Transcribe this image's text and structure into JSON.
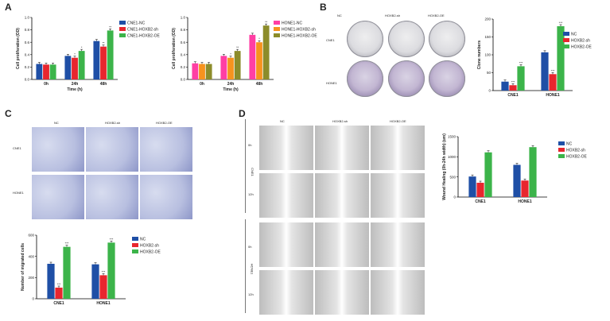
{
  "panels": {
    "A": "A",
    "B": "B",
    "C": "C",
    "D": "D"
  },
  "colors": {
    "red": "#e8262e",
    "blue": "#1f4fa6",
    "green": "#3cb44a",
    "pink": "#ff3fa4",
    "orange": "#f7931e",
    "olive": "#8c8c2a"
  },
  "panelB": {
    "cols": [
      "NC",
      "HOXB2-sh",
      "HOXB2-OE"
    ],
    "rows": [
      "CNE1",
      "HONE1"
    ]
  },
  "panelC": {
    "cols": [
      "NC",
      "HOXB2-sh",
      "HOXB2-OE"
    ],
    "rows": [
      "CNE1",
      "HONE1"
    ]
  },
  "panelD": {
    "cols": [
      "NC",
      "HOXB2-sh",
      "HOXB2-OE"
    ],
    "groups": [
      "CNE1",
      "HONE1"
    ],
    "times": [
      "0h",
      "12h",
      "0h",
      "12h"
    ]
  },
  "chart_data": [
    {
      "id": "A1",
      "type": "bar",
      "categories": [
        "0h",
        "24h",
        "48h"
      ],
      "series": [
        {
          "name": "CNE1-NC",
          "color": "#1f4fa6",
          "values": [
            0.25,
            0.38,
            0.62
          ]
        },
        {
          "name": "CNE1-HOXB2-sh",
          "color": "#e8262e",
          "values": [
            0.24,
            0.35,
            0.53
          ]
        },
        {
          "name": "CNE1-HOXB2-OE",
          "color": "#3cb44a",
          "values": [
            0.24,
            0.46,
            0.79
          ]
        }
      ],
      "ylabel": "Cell proliferation (OD)",
      "xlabel": "Time (h)",
      "ylim": [
        0,
        1.0
      ],
      "yticks": [
        "0.0",
        "0.2",
        "0.4",
        "0.6",
        "0.8",
        "1.0"
      ],
      "stars": [
        [
          "",
          "",
          ""
        ],
        [
          "",
          "*",
          "*"
        ],
        [
          "",
          "**",
          "**"
        ]
      ]
    },
    {
      "id": "A2",
      "type": "bar",
      "categories": [
        "0h",
        "24h",
        "48h"
      ],
      "series": [
        {
          "name": "HONE1-NC",
          "color": "#ff3fa4",
          "values": [
            0.26,
            0.38,
            0.72
          ]
        },
        {
          "name": "HONE1-HOXB2-sh",
          "color": "#f7931e",
          "values": [
            0.25,
            0.35,
            0.6
          ]
        },
        {
          "name": "HONE1-HOXB2-OE",
          "color": "#8c8c2a",
          "values": [
            0.25,
            0.46,
            0.87
          ]
        }
      ],
      "ylabel": "Cell proliferation (OD)",
      "xlabel": "Time (h)",
      "ylim": [
        0,
        1.0
      ],
      "yticks": [
        "0.0",
        "0.2",
        "0.4",
        "0.6",
        "0.8",
        "1.0"
      ],
      "stars": [
        [
          "",
          "",
          ""
        ],
        [
          "",
          "*",
          "**"
        ],
        [
          "",
          "*",
          "**"
        ]
      ]
    },
    {
      "id": "B",
      "type": "bar",
      "categories": [
        "CNE1",
        "HONE1"
      ],
      "series": [
        {
          "name": "NC",
          "color": "#1f4fa6",
          "values": [
            25,
            107
          ]
        },
        {
          "name": "HOXB2-sh",
          "color": "#e8262e",
          "values": [
            15,
            46
          ]
        },
        {
          "name": "HOXB2-OE",
          "color": "#3cb44a",
          "values": [
            68,
            180
          ]
        }
      ],
      "ylabel": "Clone numbers",
      "xlabel": "",
      "ylim": [
        0,
        200
      ],
      "yticks": [
        "0",
        "50",
        "100",
        "150",
        "200"
      ],
      "stars": [
        [
          "",
          "***",
          "***"
        ],
        [
          "",
          "***",
          "***"
        ]
      ]
    },
    {
      "id": "C",
      "type": "bar",
      "categories": [
        "CNE1",
        "HONE1"
      ],
      "series": [
        {
          "name": "NC",
          "color": "#1f4fa6",
          "values": [
            330,
            325
          ]
        },
        {
          "name": "HOXB2-sh",
          "color": "#e8262e",
          "values": [
            105,
            222
          ]
        },
        {
          "name": "HOXB2-OE",
          "color": "#3cb44a",
          "values": [
            490,
            530
          ]
        }
      ],
      "ylabel": "Number of migrated cells",
      "xlabel": "",
      "ylim": [
        0,
        600
      ],
      "yticks": [
        "0",
        "200",
        "400",
        "600"
      ],
      "stars": [
        [
          "",
          "***",
          "***"
        ],
        [
          "",
          "***",
          "***"
        ]
      ]
    },
    {
      "id": "D",
      "type": "bar",
      "categories": [
        "CNE1",
        "HONE1"
      ],
      "series": [
        {
          "name": "NC",
          "color": "#1f4fa6",
          "values": [
            510,
            800
          ]
        },
        {
          "name": "HOXB2-sh",
          "color": "#e8262e",
          "values": [
            355,
            410
          ]
        },
        {
          "name": "HOXB2-OE",
          "color": "#3cb44a",
          "values": [
            1110,
            1240
          ]
        }
      ],
      "ylabel": "Wound Healing (0h-24h width) (um)",
      "xlabel": "",
      "ylim": [
        0,
        1500
      ],
      "yticks": [
        "0",
        "500",
        "1000",
        "1500"
      ],
      "stars": [
        [
          "",
          "",
          ""
        ],
        [
          "",
          "",
          ""
        ]
      ]
    }
  ]
}
